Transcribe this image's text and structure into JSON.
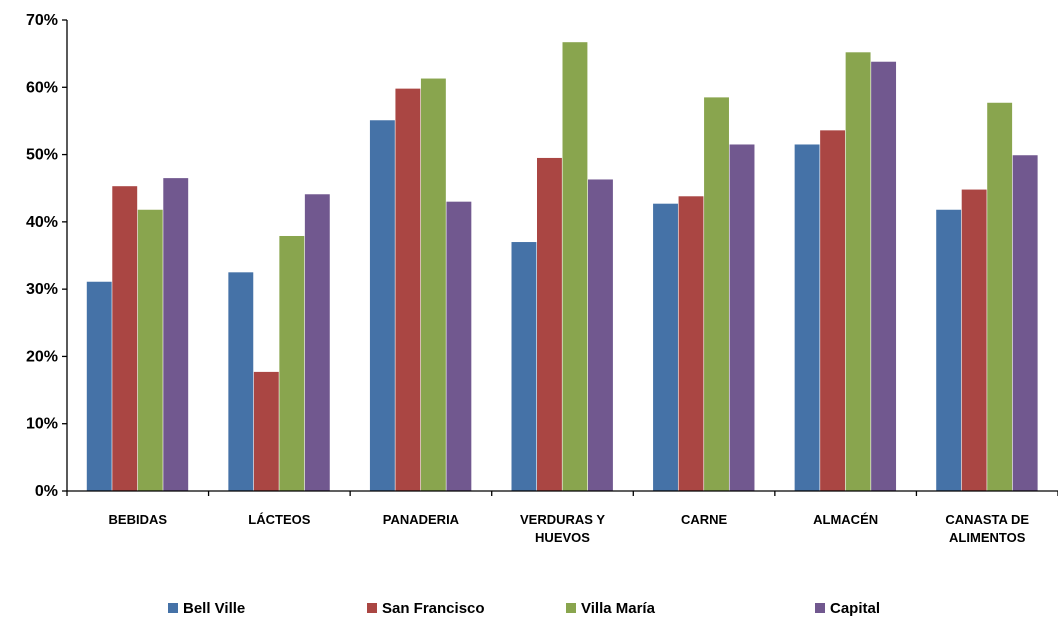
{
  "chart_data": {
    "type": "bar",
    "categories": [
      [
        "BEBIDAS"
      ],
      [
        "LÁCTEOS"
      ],
      [
        "PANADERIA"
      ],
      [
        "VERDURAS Y",
        "HUEVOS"
      ],
      [
        "CARNE"
      ],
      [
        "ALMACÉN"
      ],
      [
        "CANASTA DE",
        "ALIMENTOS"
      ]
    ],
    "series": [
      {
        "name": "Bell Ville",
        "color": "#4572A7",
        "values": [
          0.311,
          0.325,
          0.551,
          0.37,
          0.427,
          0.515,
          0.418
        ]
      },
      {
        "name": "San Francisco",
        "color": "#AA4643",
        "values": [
          0.453,
          0.177,
          0.598,
          0.495,
          0.438,
          0.536,
          0.448
        ]
      },
      {
        "name": "Villa María",
        "color": "#89A54E",
        "values": [
          0.418,
          0.379,
          0.613,
          0.667,
          0.585,
          0.652,
          0.577
        ]
      },
      {
        "name": "Capital",
        "color": "#71588F",
        "values": [
          0.465,
          0.441,
          0.43,
          0.463,
          0.515,
          0.638,
          0.499
        ]
      }
    ],
    "yticks": [
      "0%",
      "10%",
      "20%",
      "30%",
      "40%",
      "50%",
      "60%",
      "70%"
    ],
    "ylim": [
      0,
      0.7
    ],
    "ystep": 0.1,
    "grid": false,
    "legend_position": "bottom",
    "title": "",
    "xlabel": "",
    "ylabel": ""
  }
}
